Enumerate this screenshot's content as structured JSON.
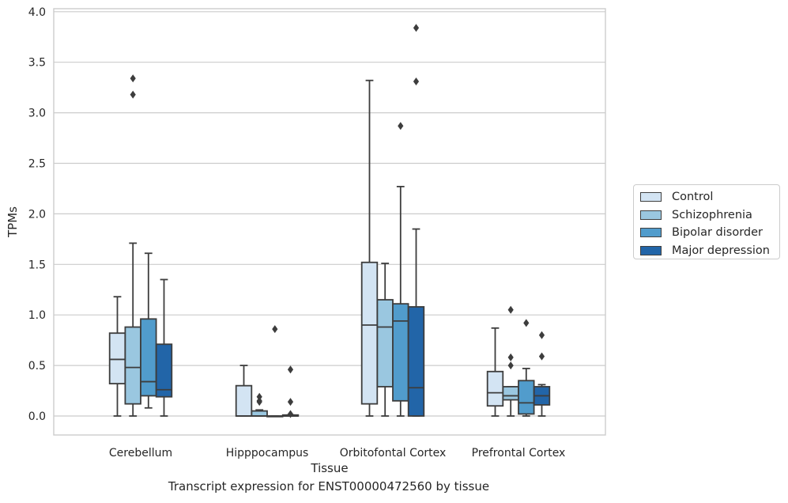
{
  "chart_data": {
    "type": "box",
    "title": "",
    "caption": "Transcript expression for ENST00000472560 by tissue",
    "xlabel": "Tissue",
    "ylabel": "TPMs",
    "ylim": [
      -0.18,
      4.05
    ],
    "yticks": [
      "0.0",
      "0.5",
      "1.0",
      "1.5",
      "2.0",
      "2.5",
      "3.0",
      "3.5",
      "4.0"
    ],
    "grid": "horizontal",
    "legend_position": "right",
    "categories": [
      "Cerebellum",
      "Hipppocampus",
      "Orbitofontal Cortex",
      "Prefrontal Cortex"
    ],
    "series": [
      {
        "name": "Control",
        "color": "#d3e4f3",
        "boxes": [
          {
            "whislo": 0.0,
            "q1": 0.32,
            "med": 0.56,
            "q3": 0.82,
            "whishi": 1.18,
            "fliers": []
          },
          {
            "whislo": 0.0,
            "q1": 0.0,
            "med": 0.0,
            "q3": 0.3,
            "whishi": 0.5,
            "fliers": []
          },
          {
            "whislo": 0.0,
            "q1": 0.12,
            "med": 0.9,
            "q3": 1.52,
            "whishi": 3.32,
            "fliers": []
          },
          {
            "whislo": 0.0,
            "q1": 0.1,
            "med": 0.23,
            "q3": 0.44,
            "whishi": 0.87,
            "fliers": []
          }
        ]
      },
      {
        "name": "Schizophrenia",
        "color": "#9ac7e0",
        "boxes": [
          {
            "whislo": 0.0,
            "q1": 0.12,
            "med": 0.48,
            "q3": 0.88,
            "whishi": 1.71,
            "fliers": [
              3.18,
              3.34
            ]
          },
          {
            "whislo": 0.0,
            "q1": 0.0,
            "med": 0.0,
            "q3": 0.05,
            "whishi": 0.06,
            "fliers": [
              0.14,
              0.15,
              0.19
            ]
          },
          {
            "whislo": 0.0,
            "q1": 0.29,
            "med": 0.88,
            "q3": 1.15,
            "whishi": 1.51,
            "fliers": []
          },
          {
            "whislo": 0.0,
            "q1": 0.16,
            "med": 0.2,
            "q3": 0.29,
            "whishi": 0.29,
            "fliers": [
              0.5,
              0.58,
              1.05
            ]
          }
        ]
      },
      {
        "name": "Bipolar disorder",
        "color": "#519ccc",
        "boxes": [
          {
            "whislo": 0.08,
            "q1": 0.2,
            "med": 0.34,
            "q3": 0.96,
            "whishi": 1.61,
            "fliers": []
          },
          {
            "whislo": 0.0,
            "q1": 0.0,
            "med": 0.0,
            "q3": 0.0,
            "whishi": 0.0,
            "fliers": [
              0.86
            ]
          },
          {
            "whislo": 0.0,
            "q1": 0.15,
            "med": 0.94,
            "q3": 1.11,
            "whishi": 2.27,
            "fliers": [
              2.87
            ]
          },
          {
            "whislo": 0.0,
            "q1": 0.02,
            "med": 0.13,
            "q3": 0.35,
            "whishi": 0.47,
            "fliers": [
              0.92
            ]
          }
        ]
      },
      {
        "name": "Major depression",
        "color": "#2265a8",
        "boxes": [
          {
            "whislo": 0.0,
            "q1": 0.19,
            "med": 0.26,
            "q3": 0.71,
            "whishi": 1.35,
            "fliers": []
          },
          {
            "whislo": 0.0,
            "q1": 0.0,
            "med": 0.0,
            "q3": 0.01,
            "whishi": 0.01,
            "fliers": [
              0.02,
              0.14,
              0.46
            ]
          },
          {
            "whislo": 0.0,
            "q1": 0.0,
            "med": 0.28,
            "q3": 1.08,
            "whishi": 1.85,
            "fliers": [
              3.31,
              3.84
            ]
          },
          {
            "whislo": 0.0,
            "q1": 0.11,
            "med": 0.2,
            "q3": 0.29,
            "whishi": 0.31,
            "fliers": [
              0.59,
              0.8
            ]
          }
        ]
      }
    ]
  }
}
